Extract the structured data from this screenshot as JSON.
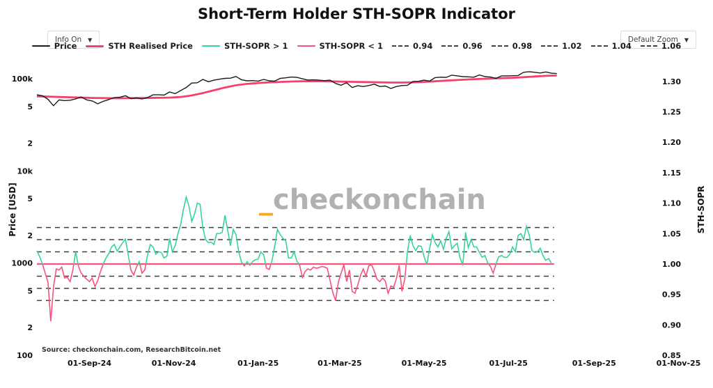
{
  "header": {
    "title": "Short-Term Holder STH-SOPR Indicator"
  },
  "controls": {
    "info_label": "Info On",
    "zoom_label": "Default Zoom",
    "dropdown_arrow": "▼"
  },
  "watermark": {
    "accent": "_",
    "name": "checkonchain"
  },
  "source": {
    "text": "Source: checkonchain.com, ResearchBitcoin.net"
  },
  "axes": {
    "left_title": "Price [USD]",
    "right_title": "STH-SOPR"
  },
  "colors": {
    "price": "#1a1a1a",
    "sth_realised": "#f5406e",
    "sopr_above": "#35d598",
    "sopr_below": "#f5537b",
    "gridline": "#3f3f3f",
    "baseline": "#f5537b",
    "watermark_accent": "#f7a823",
    "watermark_text": "#b1b1b1"
  },
  "chart_data": {
    "type": "line",
    "title": "Short-Term Holder STH-SOPR Indicator",
    "x_axis": {
      "start_date": "2024-07-25",
      "end_date": "2025-11-01",
      "ticks": [
        {
          "label": "01-Sep-24",
          "day": 38
        },
        {
          "label": "01-Nov-24",
          "day": 99
        },
        {
          "label": "01-Jan-25",
          "day": 160
        },
        {
          "label": "01-Mar-25",
          "day": 219
        },
        {
          "label": "01-May-25",
          "day": 280
        },
        {
          "label": "01-Jul-25",
          "day": 341
        },
        {
          "label": "01-Sep-25",
          "day": 403
        },
        {
          "label": "01-Nov-25",
          "day": 464
        }
      ]
    },
    "y_left": {
      "title": "Price [USD]",
      "scale": "log",
      "range_usd": [
        100,
        200000
      ],
      "ticks": [
        {
          "label": "100k",
          "value": 100000
        },
        {
          "label": "5",
          "value": 50000
        },
        {
          "label": "2",
          "value": 20000
        },
        {
          "label": "10k",
          "value": 10000
        },
        {
          "label": "5",
          "value": 5000
        },
        {
          "label": "2",
          "value": 2000
        },
        {
          "label": "1000",
          "value": 1000
        },
        {
          "label": "5",
          "value": 500
        },
        {
          "label": "2",
          "value": 200
        },
        {
          "label": "100",
          "value": 100
        }
      ]
    },
    "y_right": {
      "title": "STH-SOPR",
      "scale": "linear",
      "range": [
        0.85,
        1.335
      ],
      "ticks": [
        {
          "label": "1.30",
          "value": 1.3
        },
        {
          "label": "1.25",
          "value": 1.25
        },
        {
          "label": "1.20",
          "value": 1.2
        },
        {
          "label": "1.15",
          "value": 1.15
        },
        {
          "label": "1.10",
          "value": 1.1
        },
        {
          "label": "1.05",
          "value": 1.05
        },
        {
          "label": "1.00",
          "value": 1.0
        },
        {
          "label": "0.95",
          "value": 0.95
        },
        {
          "label": "0.90",
          "value": 0.9
        },
        {
          "label": "0.85",
          "value": 0.85
        }
      ]
    },
    "sopr_dashed_levels": [
      1.06,
      1.04,
      1.02,
      0.98,
      0.96,
      0.94
    ],
    "sopr_baseline": 1.0,
    "legend": [
      {
        "label": "Price",
        "swatch": "line",
        "color": "#1a1a1a",
        "width": 2
      },
      {
        "label": "STH Realised Price",
        "swatch": "line",
        "color": "#f5406e",
        "width": 3.5
      },
      {
        "label": "STH-SOPR > 1",
        "swatch": "line",
        "color": "#35d598",
        "width": 2.5
      },
      {
        "label": "STH-SOPR < 1",
        "swatch": "line",
        "color": "#f5537b",
        "width": 2.5
      },
      {
        "label": "0.94",
        "swatch": "dash",
        "color": "#3f3f3f"
      },
      {
        "label": "0.96",
        "swatch": "dash",
        "color": "#3f3f3f"
      },
      {
        "label": "0.98",
        "swatch": "dash",
        "color": "#3f3f3f"
      },
      {
        "label": "1.02",
        "swatch": "dash",
        "color": "#3f3f3f"
      },
      {
        "label": "1.04",
        "swatch": "dash",
        "color": "#3f3f3f"
      },
      {
        "label": "1.06",
        "swatch": "dash",
        "color": "#3f3f3f"
      }
    ],
    "series": [
      {
        "name": "Price",
        "axis": "left",
        "unit": "kUSD",
        "start_day": 0,
        "interval_days": 4,
        "values": [
          67,
          65.5,
          60,
          51,
          59,
          58,
          58.5,
          60.5,
          63.5,
          59,
          57.5,
          53.5,
          57,
          59.5,
          62.5,
          63,
          65.5,
          61,
          62,
          60.5,
          62.5,
          67,
          67,
          66.5,
          72,
          69,
          74.5,
          80.5,
          90,
          90.5,
          98.5,
          93,
          96.5,
          99,
          101,
          101.5,
          106,
          97.5,
          95,
          95.5,
          94.5,
          98.5,
          95,
          94.5,
          101,
          102.5,
          104.5,
          103.5,
          100,
          97,
          97.5,
          96.5,
          95.5,
          96.5,
          89,
          85,
          90.5,
          80.5,
          84,
          82.5,
          84.5,
          87.5,
          82.5,
          83.5,
          78.5,
          82.5,
          84.5,
          85,
          93.5,
          94,
          96.5,
          94.5,
          103,
          104,
          103.5,
          109.5,
          107.5,
          105.5,
          105,
          104,
          110,
          105.5,
          104.5,
          101,
          107.5,
          107.5,
          108,
          108.5,
          117.5,
          119.5,
          117.5,
          115.5,
          118.5,
          115,
          114
        ]
      },
      {
        "name": "STH Realised Price",
        "axis": "left",
        "unit": "kUSD",
        "start_day": 0,
        "interval_days": 8,
        "values": [
          64.5,
          64,
          63.5,
          63,
          62.5,
          62,
          61.8,
          61.5,
          61.5,
          61.8,
          62,
          62.3,
          62.5,
          63.5,
          66,
          70,
          75,
          80.5,
          85,
          88,
          90,
          91.5,
          92.5,
          93.5,
          94,
          94,
          94,
          93.5,
          93,
          92.5,
          92,
          91.5,
          91,
          91,
          91.5,
          92.5,
          94,
          95.5,
          97,
          98.5,
          99.5,
          100.5,
          101.5,
          102.5,
          104,
          106,
          107.5,
          108.5
        ]
      },
      {
        "name": "STH-SOPR",
        "axis": "right",
        "threshold": 1.0,
        "start_day": 0,
        "interval_days": 2,
        "values": [
          1.022,
          1.012,
          1.0,
          0.985,
          0.97,
          0.906,
          0.962,
          0.992,
          0.99,
          0.995,
          0.977,
          0.978,
          0.971,
          0.99,
          1.02,
          0.997,
          0.985,
          0.98,
          0.975,
          0.971,
          0.977,
          0.963,
          0.973,
          0.988,
          1.0,
          1.01,
          1.017,
          1.028,
          1.032,
          1.021,
          1.028,
          1.035,
          1.041,
          1.015,
          0.99,
          0.982,
          0.995,
          1.004,
          0.985,
          0.99,
          1.015,
          1.032,
          1.028,
          1.016,
          1.02,
          1.019,
          1.01,
          1.013,
          1.042,
          1.02,
          1.03,
          1.05,
          1.065,
          1.09,
          1.11,
          1.095,
          1.07,
          1.082,
          1.1,
          1.098,
          1.06,
          1.04,
          1.035,
          1.036,
          1.032,
          1.05,
          1.05,
          1.052,
          1.08,
          1.055,
          1.03,
          1.057,
          1.048,
          1.02,
          1.003,
          0.997,
          1.004,
          0.998,
          1.004,
          1.007,
          1.008,
          1.02,
          1.015,
          0.993,
          0.991,
          1.005,
          1.03,
          1.057,
          1.048,
          1.042,
          1.038,
          1.01,
          1.01,
          1.02,
          1.005,
          0.998,
          0.978,
          0.988,
          0.992,
          0.99,
          0.995,
          0.993,
          0.994,
          0.996,
          0.995,
          0.993,
          0.973,
          0.953,
          0.94,
          0.97,
          0.985,
          0.999,
          0.971,
          0.99,
          0.955,
          0.952,
          0.965,
          0.981,
          0.992,
          0.98,
          0.997,
          0.999,
          0.988,
          0.975,
          0.971,
          0.977,
          0.972,
          0.952,
          0.964,
          0.962,
          0.976,
          0.998,
          0.955,
          0.975,
          1.02,
          1.047,
          1.03,
          1.022,
          1.03,
          1.029,
          1.012,
          0.999,
          1.025,
          1.048,
          1.035,
          1.028,
          1.038,
          1.024,
          1.042,
          1.053,
          1.025,
          1.03,
          1.034,
          1.01,
          0.998,
          1.052,
          1.027,
          1.04,
          1.028,
          1.028,
          1.019,
          1.011,
          1.014,
          1.002,
          0.996,
          0.985,
          1.0,
          1.012,
          1.014,
          1.011,
          1.011,
          1.016,
          1.028,
          1.02,
          1.047,
          1.05,
          1.04,
          1.062,
          1.048,
          1.022,
          1.019,
          1.02,
          1.026,
          1.014,
          1.006,
          1.009,
          1.002
        ]
      }
    ]
  }
}
